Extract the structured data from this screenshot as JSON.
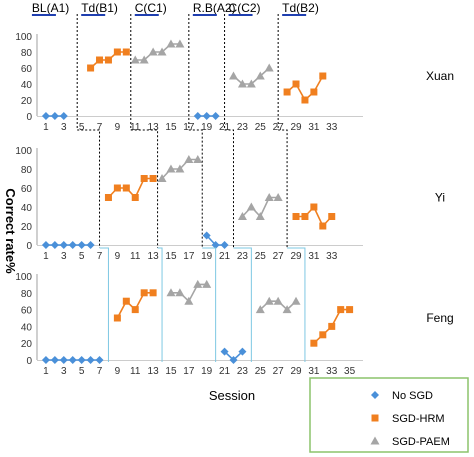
{
  "chart_data": {
    "type": "line",
    "xlabel": "Session",
    "ylabel": "Correct rate%",
    "ylim": [
      0,
      100
    ],
    "yticks": [
      0,
      20,
      40,
      60,
      80,
      100
    ],
    "xticks": [
      1,
      3,
      5,
      7,
      9,
      11,
      13,
      15,
      17,
      19,
      21,
      23,
      25,
      27,
      29,
      31,
      33,
      35
    ],
    "phase_labels": [
      "BL(A1)",
      "Td(B1)",
      "C(C1)",
      "R.B(A2)",
      "C(C2)",
      "Td(B2)"
    ],
    "legend": [
      {
        "label": "No SGD",
        "marker": "diamond",
        "color": "#4A90D9"
      },
      {
        "label": "SGD-HRM",
        "marker": "square",
        "color": "#F07F1F"
      },
      {
        "label": "SGD-PAEM",
        "marker": "triangle",
        "color": "#A5A5A5"
      }
    ],
    "panels": [
      {
        "name": "Xuan",
        "xticks": [
          1,
          3,
          5,
          7,
          9,
          11,
          13,
          15,
          17,
          19,
          21,
          23,
          25,
          27,
          29,
          31,
          33
        ],
        "series": [
          {
            "condition": "No SGD",
            "x": [
              1,
              2,
              3
            ],
            "y": [
              0,
              0,
              0
            ]
          },
          {
            "condition": "SGD-HRM",
            "x": [
              6,
              7,
              8,
              9,
              10
            ],
            "y": [
              60,
              70,
              70,
              80,
              80
            ]
          },
          {
            "condition": "SGD-PAEM",
            "x": [
              11,
              12,
              13,
              14,
              15,
              16
            ],
            "y": [
              70,
              70,
              80,
              80,
              90,
              90
            ]
          },
          {
            "condition": "No SGD",
            "x": [
              18,
              19,
              20
            ],
            "y": [
              0,
              0,
              0
            ]
          },
          {
            "condition": "SGD-PAEM",
            "x": [
              22,
              23,
              24,
              25,
              26
            ],
            "y": [
              50,
              40,
              40,
              50,
              60
            ]
          },
          {
            "condition": "SGD-HRM",
            "x": [
              28,
              29,
              30,
              31,
              32
            ],
            "y": [
              30,
              40,
              20,
              30,
              50
            ]
          }
        ]
      },
      {
        "name": "Yi",
        "xticks": [
          1,
          3,
          5,
          7,
          9,
          11,
          13,
          15,
          17,
          19,
          21,
          23,
          25,
          27,
          29,
          31,
          33
        ],
        "series": [
          {
            "condition": "No SGD",
            "x": [
              1,
              2,
              3,
              4,
              5,
              6
            ],
            "y": [
              0,
              0,
              0,
              0,
              0,
              0
            ]
          },
          {
            "condition": "SGD-HRM",
            "x": [
              8,
              9,
              10,
              11,
              12,
              13
            ],
            "y": [
              50,
              60,
              60,
              50,
              70,
              70
            ]
          },
          {
            "condition": "SGD-PAEM",
            "x": [
              14,
              15,
              16,
              17,
              18
            ],
            "y": [
              70,
              80,
              80,
              90,
              90
            ]
          },
          {
            "condition": "No SGD",
            "x": [
              19,
              20,
              21
            ],
            "y": [
              10,
              0,
              0
            ]
          },
          {
            "condition": "SGD-PAEM",
            "x": [
              23,
              24,
              25,
              26,
              27
            ],
            "y": [
              30,
              40,
              30,
              50,
              50
            ]
          },
          {
            "condition": "SGD-HRM",
            "x": [
              29,
              30,
              31,
              32,
              33
            ],
            "y": [
              30,
              30,
              40,
              20,
              30
            ]
          }
        ]
      },
      {
        "name": "Feng",
        "xticks": [
          1,
          3,
          5,
          7,
          9,
          11,
          13,
          15,
          17,
          19,
          21,
          23,
          25,
          27,
          29,
          31,
          33,
          35
        ],
        "series": [
          {
            "condition": "No SGD",
            "x": [
              1,
              2,
              3,
              4,
              5,
              6,
              7
            ],
            "y": [
              0,
              0,
              0,
              0,
              0,
              0,
              0
            ]
          },
          {
            "condition": "SGD-HRM",
            "x": [
              9,
              10,
              11,
              12,
              13
            ],
            "y": [
              50,
              70,
              60,
              80,
              80
            ]
          },
          {
            "condition": "SGD-PAEM",
            "x": [
              15,
              16,
              17,
              18,
              19
            ],
            "y": [
              80,
              80,
              70,
              90,
              90
            ]
          },
          {
            "condition": "No SGD",
            "x": [
              21,
              22,
              23
            ],
            "y": [
              10,
              0,
              10
            ]
          },
          {
            "condition": "SGD-PAEM",
            "x": [
              25,
              26,
              27,
              28,
              29
            ],
            "y": [
              60,
              70,
              70,
              60,
              70
            ]
          },
          {
            "condition": "SGD-HRM",
            "x": [
              31,
              32,
              33,
              34,
              35
            ],
            "y": [
              20,
              30,
              40,
              60,
              60
            ]
          }
        ]
      }
    ]
  }
}
